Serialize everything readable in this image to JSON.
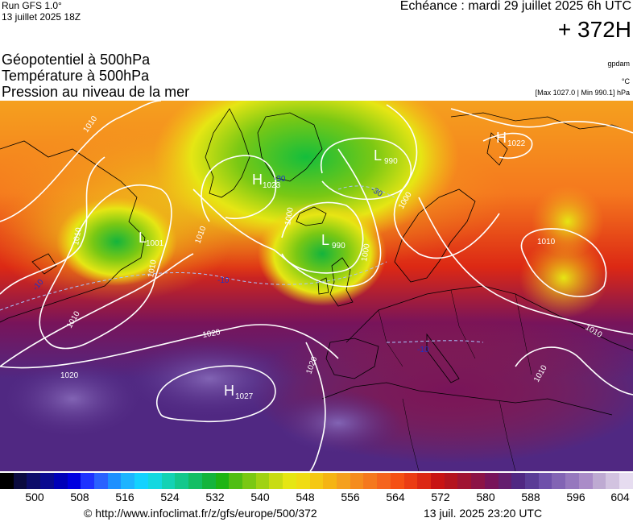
{
  "header": {
    "run": "Run GFS 1.0°",
    "run_date": "13 juillet 2025 18Z",
    "echeance": "Echéance : mardi 29 juillet 2025 6h UTC",
    "lead_time": "+ 372H"
  },
  "layers": {
    "geopotential": "Géopotentiel à 500hPa",
    "temperature": "Température à 500hPa",
    "pressure": "Pression au niveau de la mer"
  },
  "units": {
    "geopotential": "gpdam",
    "temperature": "°C",
    "pressure": "[Max 1027.0 | Min 990.1] hPa"
  },
  "map": {
    "isobar_labels": [
      "1010",
      "1010",
      "1010",
      "1010",
      "1010",
      "1010",
      "1010",
      "1000",
      "1000",
      "1000",
      "1020",
      "1020",
      "1020",
      "1010"
    ],
    "isotherm_labels": [
      "-30",
      "-10",
      "-10",
      "-10",
      "-30"
    ],
    "centers": [
      {
        "type": "H",
        "value": "1023"
      },
      {
        "type": "L",
        "value": "990"
      },
      {
        "type": "H",
        "value": "1022"
      },
      {
        "type": "L",
        "value": "1001"
      },
      {
        "type": "L",
        "value": "990"
      },
      {
        "type": "H",
        "value": "1027"
      }
    ]
  },
  "colorbar": {
    "colors": [
      "#000000",
      "#0b0b3f",
      "#0d0d6a",
      "#0a0a90",
      "#0000b8",
      "#0000e0",
      "#1e32ff",
      "#2a62ff",
      "#1e90ff",
      "#1eb4ff",
      "#14d2ff",
      "#14d8e0",
      "#14d2b4",
      "#14c88c",
      "#14be64",
      "#14b43c",
      "#1eb414",
      "#50be14",
      "#7ac814",
      "#a0d214",
      "#c8dc14",
      "#e6e614",
      "#f0dc14",
      "#f5c814",
      "#f5b414",
      "#f5a01e",
      "#f58c1e",
      "#f5781e",
      "#f5641e",
      "#f55014",
      "#eb3c14",
      "#dc2814",
      "#c81414",
      "#b4141e",
      "#a01432",
      "#8c1446",
      "#78145a",
      "#641e6e",
      "#502882",
      "#5a3c96",
      "#6e50aa",
      "#8264b4",
      "#9678be",
      "#aa8cc8",
      "#beaad2",
      "#d2c3e0",
      "#e6dcf0"
    ],
    "ticks": [
      "500",
      "508",
      "516",
      "524",
      "532",
      "540",
      "548",
      "556",
      "564",
      "572",
      "580",
      "588",
      "596",
      "604"
    ]
  },
  "footer": {
    "credit": "© http://www.infoclimat.fr/z/gfs/europe/500/372",
    "timestamp": "13 juil. 2025 23:20 UTC"
  }
}
